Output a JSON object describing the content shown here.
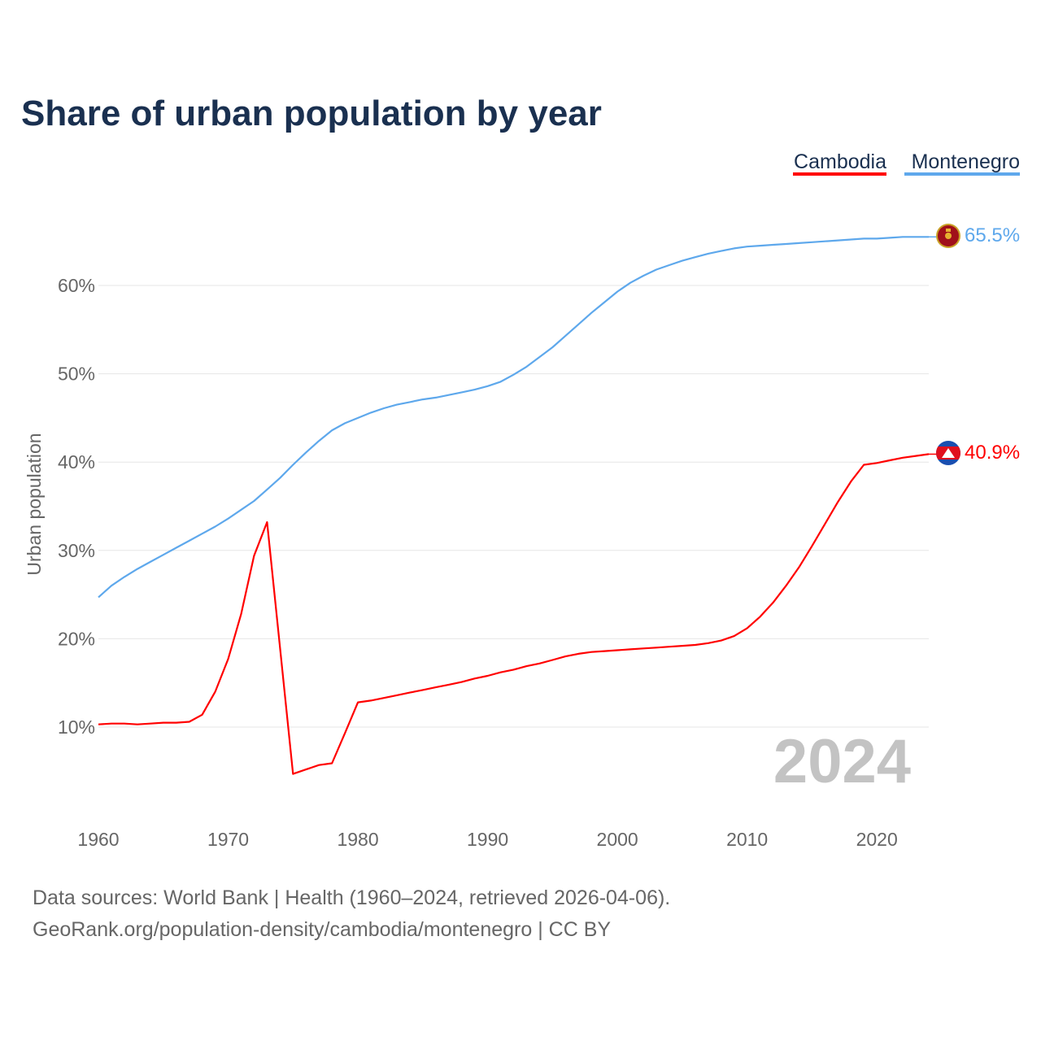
{
  "chart_data": {
    "type": "line",
    "title": "Share of urban population by year",
    "ylabel": "Urban population",
    "xlabel": "",
    "xlim": [
      1960,
      2024
    ],
    "ylim": [
      0,
      70
    ],
    "x_ticks": [
      "1960",
      "1970",
      "1980",
      "1990",
      "2000",
      "2010",
      "2020"
    ],
    "y_ticks": [
      {
        "value": 10,
        "label": "10%"
      },
      {
        "value": 20,
        "label": "20%"
      },
      {
        "value": 30,
        "label": "30%"
      },
      {
        "value": 40,
        "label": "40%"
      },
      {
        "value": 50,
        "label": "50%"
      },
      {
        "value": 60,
        "label": "60%"
      }
    ],
    "grid": true,
    "legend_position": "top-right",
    "current_year": "2024",
    "x": [
      1960,
      1961,
      1962,
      1963,
      1964,
      1965,
      1966,
      1967,
      1968,
      1969,
      1970,
      1971,
      1972,
      1973,
      1974,
      1975,
      1976,
      1977,
      1978,
      1979,
      1980,
      1981,
      1982,
      1983,
      1984,
      1985,
      1986,
      1987,
      1988,
      1989,
      1990,
      1991,
      1992,
      1993,
      1994,
      1995,
      1996,
      1997,
      1998,
      1999,
      2000,
      2001,
      2002,
      2003,
      2004,
      2005,
      2006,
      2007,
      2008,
      2009,
      2010,
      2011,
      2012,
      2013,
      2014,
      2015,
      2016,
      2017,
      2018,
      2019,
      2020,
      2021,
      2022,
      2023,
      2024
    ],
    "series": [
      {
        "name": "Cambodia",
        "color": "#ff0000",
        "end_label": "40.9%",
        "values": [
          10.3,
          10.4,
          10.4,
          10.3,
          10.4,
          10.5,
          10.5,
          10.6,
          11.4,
          14.0,
          17.7,
          22.8,
          29.4,
          33.2,
          19.0,
          4.7,
          5.2,
          5.7,
          5.9,
          9.3,
          12.8,
          13.0,
          13.3,
          13.6,
          13.9,
          14.2,
          14.5,
          14.8,
          15.1,
          15.5,
          15.8,
          16.2,
          16.5,
          16.9,
          17.2,
          17.6,
          18.0,
          18.3,
          18.5,
          18.6,
          18.7,
          18.8,
          18.9,
          19.0,
          19.1,
          19.2,
          19.3,
          19.5,
          19.8,
          20.3,
          21.2,
          22.5,
          24.1,
          26.0,
          28.1,
          30.5,
          33.0,
          35.5,
          37.8,
          39.7,
          39.9,
          40.2,
          40.5,
          40.7,
          40.9
        ]
      },
      {
        "name": "Montenegro",
        "color": "#5ea8ec",
        "end_label": "65.5%",
        "values": [
          24.7,
          26.0,
          27.0,
          27.9,
          28.7,
          29.5,
          30.3,
          31.1,
          31.9,
          32.7,
          33.6,
          34.6,
          35.6,
          36.9,
          38.2,
          39.7,
          41.1,
          42.4,
          43.6,
          44.4,
          45.0,
          45.6,
          46.1,
          46.5,
          46.8,
          47.1,
          47.3,
          47.6,
          47.9,
          48.2,
          48.6,
          49.1,
          49.9,
          50.8,
          51.9,
          53.0,
          54.3,
          55.6,
          56.9,
          58.1,
          59.3,
          60.3,
          61.1,
          61.8,
          62.3,
          62.8,
          63.2,
          63.6,
          63.9,
          64.2,
          64.4,
          64.5,
          64.6,
          64.7,
          64.8,
          64.9,
          65.0,
          65.1,
          65.2,
          65.3,
          65.3,
          65.4,
          65.5,
          65.5,
          65.5
        ]
      }
    ]
  },
  "footer": {
    "line1": "Data sources: World Bank | Health (1960–2024, retrieved 2026-04-06).",
    "line2": "GeoRank.org/population-density/cambodia/montenegro | CC BY"
  }
}
